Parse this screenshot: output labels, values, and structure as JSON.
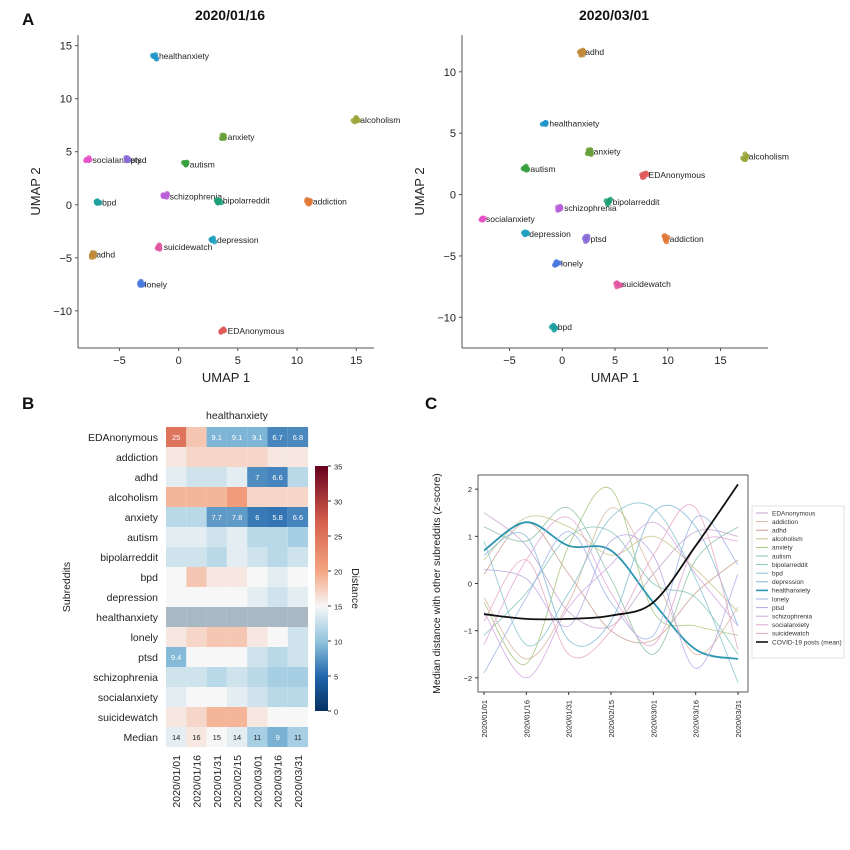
{
  "panels": {
    "a": "A",
    "b": "B",
    "c": "C"
  },
  "chart_data": [
    {
      "type": "scatter",
      "panel": "A",
      "title": "2020/01/16",
      "xlabel": "UMAP 1",
      "ylabel": "UMAP 2",
      "xlim": [
        -8.5,
        16.5
      ],
      "ylim": [
        -13.5,
        16
      ],
      "xticks": [
        -5,
        0,
        5,
        10,
        15
      ],
      "yticks": [
        15,
        10,
        5,
        0,
        -5,
        -10
      ],
      "points": [
        {
          "label": "healthanxiety",
          "x": -2.0,
          "y": 14.0,
          "color": "#2196c8"
        },
        {
          "label": "alcoholism",
          "x": 15.0,
          "y": 8.0,
          "color": "#9aa63a"
        },
        {
          "label": "anxiety",
          "x": 3.8,
          "y": 6.4,
          "color": "#6aa03a"
        },
        {
          "label": "socialanxiety",
          "x": -7.6,
          "y": 4.2,
          "color": "#e655c8"
        },
        {
          "label": "ptsd",
          "x": -4.4,
          "y": 4.2,
          "color": "#8a6cd8"
        },
        {
          "label": "autism",
          "x": 0.6,
          "y": 3.8,
          "color": "#3aa040"
        },
        {
          "label": "schizophrenia",
          "x": -1.1,
          "y": 0.8,
          "color": "#b860d8"
        },
        {
          "label": "bipolarreddit",
          "x": 3.4,
          "y": 0.4,
          "color": "#20a078"
        },
        {
          "label": "bpd",
          "x": -6.8,
          "y": 0.2,
          "color": "#20a0a0"
        },
        {
          "label": "addiction",
          "x": 11.0,
          "y": 0.3,
          "color": "#e07a3a"
        },
        {
          "label": "depression",
          "x": 2.9,
          "y": -3.3,
          "color": "#20a0c0"
        },
        {
          "label": "suicidewatch",
          "x": -1.6,
          "y": -4.0,
          "color": "#e05aa0"
        },
        {
          "label": "adhd",
          "x": -7.3,
          "y": -4.7,
          "color": "#c08a3a"
        },
        {
          "label": "lonely",
          "x": -3.2,
          "y": -7.5,
          "color": "#4a7ae0"
        },
        {
          "label": "EDAnonymous",
          "x": 3.8,
          "y": -11.9,
          "color": "#e05a5a"
        }
      ]
    },
    {
      "type": "scatter",
      "panel": "A",
      "title": "2020/03/01",
      "xlabel": "UMAP 1",
      "ylabel": "UMAP 2",
      "xlim": [
        -9.5,
        19.5
      ],
      "ylim": [
        -12.5,
        13
      ],
      "xticks": [
        -5,
        0,
        5,
        10,
        15
      ],
      "yticks": [
        10,
        5,
        0,
        -5,
        -10
      ],
      "points": [
        {
          "label": "adhd",
          "x": 1.8,
          "y": 11.6,
          "color": "#c08a3a"
        },
        {
          "label": "healthanxiety",
          "x": -1.6,
          "y": 5.8,
          "color": "#2196c8"
        },
        {
          "label": "anxiety",
          "x": 2.6,
          "y": 3.5,
          "color": "#6aa03a"
        },
        {
          "label": "alcoholism",
          "x": 17.3,
          "y": 3.1,
          "color": "#9aa63a"
        },
        {
          "label": "autism",
          "x": -3.4,
          "y": 2.1,
          "color": "#3aa040"
        },
        {
          "label": "EDAnonymous",
          "x": 7.8,
          "y": 1.6,
          "color": "#e05a5a"
        },
        {
          "label": "bipolarreddit",
          "x": 4.4,
          "y": -0.6,
          "color": "#20a078"
        },
        {
          "label": "schizophrenia",
          "x": -0.2,
          "y": -1.1,
          "color": "#b860d8"
        },
        {
          "label": "socialanxiety",
          "x": -7.6,
          "y": -2.0,
          "color": "#e655c8"
        },
        {
          "label": "depression",
          "x": -3.5,
          "y": -3.2,
          "color": "#20a0c0"
        },
        {
          "label": "ptsd",
          "x": 2.3,
          "y": -3.6,
          "color": "#8a6cd8"
        },
        {
          "label": "addiction",
          "x": 9.8,
          "y": -3.6,
          "color": "#e07a3a"
        },
        {
          "label": "lonely",
          "x": -0.5,
          "y": -5.6,
          "color": "#4a7ae0"
        },
        {
          "label": "suicidewatch",
          "x": 5.3,
          "y": -7.3,
          "color": "#e05aa0"
        },
        {
          "label": "bpd",
          "x": -0.8,
          "y": -10.8,
          "color": "#20a0a0"
        }
      ]
    },
    {
      "type": "heatmap",
      "panel": "B",
      "title": "healthanxiety",
      "ylabel": "Subreddits",
      "colorbar_label": "Distance",
      "colorbar_ticks": [
        0,
        5,
        10,
        15,
        20,
        25,
        30,
        35
      ],
      "vmin": 0,
      "vmax": 35,
      "columns": [
        "2020/01/01",
        "2020/01/16",
        "2020/01/31",
        "2020/02/15",
        "2020/03/01",
        "2020/03/16",
        "2020/03/31"
      ],
      "rows": [
        {
          "name": "EDAnonymous",
          "values": [
            25,
            18,
            9.1,
            9.1,
            9.1,
            6.7,
            6.8
          ],
          "labels": [
            "25",
            "",
            "9.1",
            "9.1",
            "9.1",
            "6.7",
            "6.8"
          ]
        },
        {
          "name": "addiction",
          "values": [
            16,
            17,
            17,
            17,
            17,
            16,
            16
          ],
          "labels": [
            "",
            "",
            "",
            "",
            "",
            "",
            ""
          ]
        },
        {
          "name": "adhd",
          "values": [
            14,
            13,
            13,
            14,
            7,
            6.6,
            12
          ],
          "labels": [
            "",
            "",
            "",
            "",
            "7",
            "6.6",
            ""
          ]
        },
        {
          "name": "alcoholism",
          "values": [
            19,
            19,
            19,
            21,
            17,
            17,
            17
          ],
          "labels": [
            "",
            "",
            "",
            "",
            "",
            "",
            ""
          ]
        },
        {
          "name": "anxiety",
          "values": [
            12,
            12,
            7.7,
            7.8,
            6,
            5.8,
            6.6
          ],
          "labels": [
            "",
            "",
            "7.7",
            "7.8",
            "6",
            "5.8",
            "6.6"
          ]
        },
        {
          "name": "autism",
          "values": [
            14,
            14,
            13,
            14,
            12,
            12,
            11
          ],
          "labels": [
            "",
            "",
            "",
            "",
            "",
            "",
            ""
          ]
        },
        {
          "name": "bipolarreddit",
          "values": [
            13,
            13,
            12,
            14,
            13,
            12,
            13
          ],
          "labels": [
            "",
            "",
            "",
            "",
            "",
            "",
            ""
          ]
        },
        {
          "name": "bpd",
          "values": [
            15,
            18,
            16,
            16,
            15,
            14,
            15
          ],
          "labels": [
            "",
            "",
            "",
            "",
            "",
            "",
            ""
          ]
        },
        {
          "name": "depression",
          "values": [
            15,
            15,
            15,
            15,
            14,
            13,
            14
          ],
          "labels": [
            "",
            "",
            "",
            "",
            "",
            "",
            ""
          ]
        },
        {
          "name": "healthanxiety",
          "values": [
            null,
            null,
            null,
            null,
            null,
            null,
            null
          ],
          "labels": [
            "",
            "",
            "",
            "",
            "",
            "",
            ""
          ]
        },
        {
          "name": "lonely",
          "values": [
            16,
            17,
            18,
            18,
            16,
            15,
            13
          ],
          "labels": [
            "",
            "",
            "",
            "",
            "",
            "",
            ""
          ]
        },
        {
          "name": "ptsd",
          "values": [
            9.4,
            15,
            15,
            15,
            13,
            12,
            13
          ],
          "labels": [
            "9.4",
            "",
            "",
            "",
            "",
            "",
            ""
          ]
        },
        {
          "name": "schizophrenia",
          "values": [
            13,
            13,
            12,
            13,
            12,
            11,
            11
          ],
          "labels": [
            "",
            "",
            "",
            "",
            "",
            "",
            ""
          ]
        },
        {
          "name": "socialanxiety",
          "values": [
            14,
            15,
            15,
            14,
            13,
            12,
            12
          ],
          "labels": [
            "",
            "",
            "",
            "",
            "",
            "",
            ""
          ]
        },
        {
          "name": "suicidewatch",
          "values": [
            16,
            17,
            19,
            19,
            16,
            15,
            15
          ],
          "labels": [
            "",
            "",
            "",
            "",
            "",
            "",
            ""
          ]
        },
        {
          "name": "Median",
          "values": [
            14,
            16,
            15,
            14,
            11,
            9,
            11
          ],
          "labels": [
            "14",
            "16",
            "15",
            "14",
            "11",
            "9",
            "11"
          ]
        }
      ]
    },
    {
      "type": "line",
      "panel": "C",
      "ylabel": "Median distance with other subreddits (z-score)",
      "ylim": [
        -2.3,
        2.3
      ],
      "yticks": [
        2,
        1,
        0,
        -1,
        -2
      ],
      "x": [
        "2020/01/01",
        "2020/01/16",
        "2020/01/31",
        "2020/02/15",
        "2020/03/01",
        "2020/03/16",
        "2020/03/31"
      ],
      "series": [
        {
          "name": "EDAnonymous",
          "color": "#c4a3cc",
          "values": [
            1.5,
            0.8,
            -0.6,
            -0.9,
            0.2,
            1.1,
            1.0
          ]
        },
        {
          "name": "addiction",
          "color": "#d9b5a0",
          "values": [
            -0.3,
            -1.6,
            -0.4,
            1.6,
            0.2,
            -1.5,
            -0.5
          ]
        },
        {
          "name": "adhd",
          "color": "#c9a090",
          "values": [
            0.2,
            1.3,
            0.2,
            -1.0,
            -1.2,
            -0.2,
            0.5
          ]
        },
        {
          "name": "alcoholism",
          "color": "#c8c28a",
          "values": [
            0.5,
            1.4,
            1.2,
            0.6,
            1.0,
            0.3,
            -0.6
          ]
        },
        {
          "name": "anxiety",
          "color": "#a7c47a",
          "values": [
            -0.4,
            -1.7,
            0.8,
            2.0,
            -0.6,
            -0.9,
            -1.1
          ]
        },
        {
          "name": "autism",
          "color": "#8cc1a6",
          "values": [
            1.2,
            0.9,
            1.6,
            0.1,
            -1.5,
            0.5,
            1.2
          ]
        },
        {
          "name": "bipolarreddit",
          "color": "#86c6b8",
          "values": [
            -1.1,
            -0.2,
            1.0,
            1.1,
            0.0,
            -0.3,
            -1.5
          ]
        },
        {
          "name": "bpd",
          "color": "#87c3d0",
          "values": [
            0.9,
            -1.3,
            -0.2,
            1.4,
            1.6,
            0.1,
            -2.1
          ]
        },
        {
          "name": "depression",
          "color": "#7fb7d6",
          "values": [
            0.6,
            1.0,
            -1.2,
            -0.8,
            1.5,
            1.2,
            -0.9
          ]
        },
        {
          "name": "healthanxiety",
          "color": "#2a96b0",
          "values": [
            0.7,
            1.3,
            0.8,
            0.7,
            -0.4,
            -1.4,
            -1.6
          ]
        },
        {
          "name": "lonely",
          "color": "#9fb4e6",
          "values": [
            -1.9,
            -0.3,
            1.1,
            -0.4,
            -1.1,
            1.4,
            0.4
          ]
        },
        {
          "name": "ptsd",
          "color": "#b7a7e3",
          "values": [
            0.3,
            0.1,
            -0.9,
            0.9,
            0.6,
            -1.8,
            0.2
          ]
        },
        {
          "name": "schizophrenia",
          "color": "#d1a7e1",
          "values": [
            -0.6,
            -2.0,
            -0.5,
            0.4,
            1.3,
            0.2,
            -0.9
          ]
        },
        {
          "name": "socialanxiety",
          "color": "#e3a7d6",
          "values": [
            -1.3,
            0.5,
            1.4,
            -0.2,
            -1.3,
            0.8,
            0.9
          ]
        },
        {
          "name": "suicidewatch",
          "color": "#e6a7c2",
          "values": [
            -0.8,
            0.5,
            -1.5,
            -1.0,
            0.6,
            1.6,
            -1.4
          ]
        },
        {
          "name": "COVID-19 posts (mean)",
          "color": "#111111",
          "values": [
            -0.65,
            -0.75,
            -0.75,
            -0.68,
            -0.4,
            0.8,
            2.1
          ]
        }
      ]
    }
  ]
}
